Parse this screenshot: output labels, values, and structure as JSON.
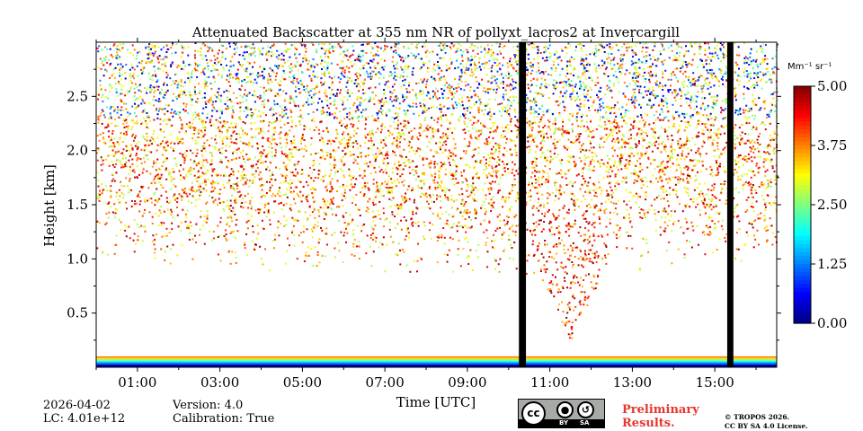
{
  "chart_data": {
    "type": "heatmap",
    "title": "Attenuated Backscatter at 355 nm NR of pollyxt_lacros2 at Invercargill",
    "xlabel": "Time [UTC]",
    "ylabel": "Height [km]",
    "x_ticks": [
      "01:00",
      "03:00",
      "05:00",
      "07:00",
      "09:00",
      "11:00",
      "13:00",
      "15:00"
    ],
    "x_tick_hours": [
      1,
      3,
      5,
      7,
      9,
      11,
      13,
      15
    ],
    "xlim_hours": [
      0,
      16.5
    ],
    "y_ticks": [
      "0.5",
      "1.0",
      "1.5",
      "2.0",
      "2.5"
    ],
    "y_tick_values": [
      0.5,
      1.0,
      1.5,
      2.0,
      2.5
    ],
    "ylim_km": [
      0,
      3.0
    ],
    "colorbar": {
      "unit_label": "Mm⁻¹ sr⁻¹",
      "ticks": [
        "0.00",
        "1.25",
        "2.50",
        "3.75",
        "5.00"
      ],
      "tick_values": [
        0,
        1.25,
        2.5,
        3.75,
        5.0
      ],
      "range": [
        0,
        5.0
      ],
      "colormap": "jet"
    },
    "gaps_hours": [
      [
        10.25,
        10.42
      ],
      [
        15.3,
        15.45
      ]
    ],
    "features": [
      {
        "name": "aerosol-layer",
        "description": "noisy backscatter ~1.0-3.0 km"
      },
      {
        "name": "dense-plume",
        "time_hours": 11.5,
        "bottom_km": 0.25,
        "top_km": 1.5,
        "value": 4.0
      }
    ]
  },
  "meta": {
    "date": "2026-04-02",
    "lc": "LC: 4.01e+12",
    "version": "Version: 4.0",
    "calibration": "Calibration: True"
  },
  "license": {
    "badge_by": "BY",
    "badge_sa": "SA",
    "badge_cc": "cc",
    "prelim_line1": "Preliminary",
    "prelim_line2": "Results.",
    "copyright_line1": "© TROPOS 2026.",
    "copyright_line2": "CC BY SA 4.0 License."
  },
  "colors": {
    "gap": "#000000",
    "prelim": "#e8352e",
    "badge_bg": "#a7aba6"
  }
}
